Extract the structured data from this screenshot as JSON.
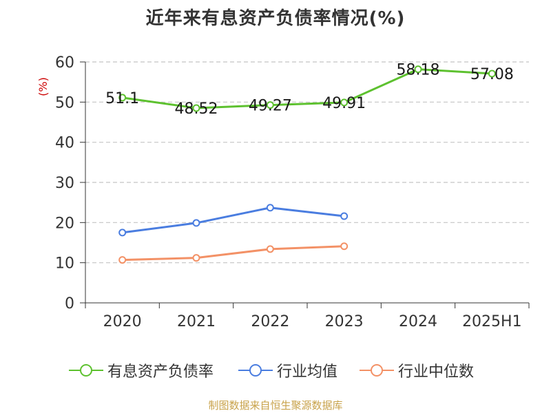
{
  "chart_data": {
    "type": "line",
    "title": "近年来有息资产负债率情况(%)",
    "ylabel": "(%)",
    "categories": [
      "2020",
      "2021",
      "2022",
      "2023",
      "2024",
      "2025H1"
    ],
    "ylim": [
      0,
      60
    ],
    "yticks": [
      "0",
      "10",
      "20",
      "30",
      "40",
      "50",
      "60"
    ],
    "grid": "horizontal-dashed",
    "legend_position": "bottom",
    "series": [
      {
        "name": "有息资产负债率",
        "color": "#5dc12f",
        "values": [
          51.1,
          48.52,
          49.27,
          49.91,
          58.18,
          57.08
        ],
        "data_labels": [
          "51.1",
          "48.52",
          "49.27",
          "49.91",
          "58.18",
          "57.08"
        ]
      },
      {
        "name": "行业均值",
        "color": "#4a7de0",
        "values": [
          17.5,
          19.9,
          23.7,
          21.6,
          null,
          null
        ]
      },
      {
        "name": "行业中位数",
        "color": "#f39166",
        "values": [
          10.7,
          11.2,
          13.4,
          14.1,
          null,
          null
        ]
      }
    ]
  },
  "source_note": "制图数据来自恒生聚源数据库"
}
